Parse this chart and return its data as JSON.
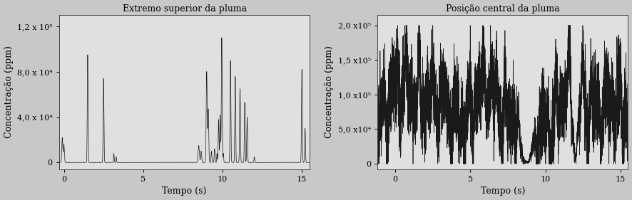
{
  "title1": "Extremo superior da pluma",
  "title2": "Posição central da pluma",
  "xlabel": "Tempo (s)",
  "ylabel": "Concentração (ppm)",
  "xlim1": [
    -0.3,
    15.5
  ],
  "xlim2": [
    -1.2,
    15.5
  ],
  "ylim1": [
    -6000,
    130000
  ],
  "ylim2": [
    -8000,
    215000
  ],
  "xticks1": [
    0,
    5,
    10,
    15
  ],
  "xticks2": [
    0,
    5,
    10,
    15
  ],
  "yticks1": [
    0,
    40000,
    80000,
    120000
  ],
  "yticks2": [
    0,
    50000,
    100000,
    150000,
    200000
  ],
  "ytick_labels1": [
    "0",
    "4,0 x 10⁴",
    "8,0 x 10⁴",
    "1,2 x 10⁵"
  ],
  "ytick_labels2": [
    "0",
    "5,0 x10⁴",
    "1,0 x10⁵",
    "1,5 x10⁵",
    "2,0 x10⁵"
  ],
  "bg_color": "#e0e0e0",
  "fig_color": "#d8d8d8",
  "line_color": "#1a1a1a",
  "title_fontsize": 9,
  "label_fontsize": 9,
  "tick_fontsize": 8
}
